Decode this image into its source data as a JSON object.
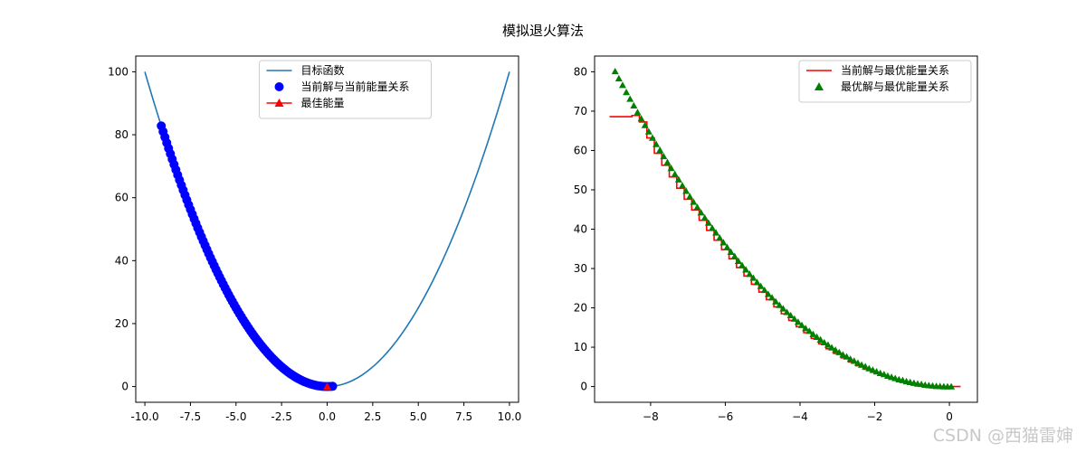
{
  "suptitle": "模拟退火算法",
  "watermark": "CSDN @西猫雷婶",
  "colors": {
    "objective": "#1f77b4",
    "current_scatter": "#0000ff",
    "best_marker": "#ff0000",
    "current_best_line": "#ff0000",
    "best_scatter_right": "#008000"
  },
  "chart_data": [
    {
      "type": "line",
      "title": "",
      "xlabel": "",
      "ylabel": "",
      "xlim": [
        -10.5,
        10.5
      ],
      "ylim": [
        -5,
        105
      ],
      "x_ticks": [
        -10.0,
        -7.5,
        -5.0,
        -2.5,
        0.0,
        2.5,
        5.0,
        7.5,
        10.0
      ],
      "x_tick_labels": [
        "-10.0",
        "-7.5",
        "-5.0",
        "-2.5",
        "0.0",
        "2.5",
        "5.0",
        "7.5",
        "10.0"
      ],
      "y_ticks": [
        0,
        20,
        40,
        60,
        80,
        100
      ],
      "y_tick_labels": [
        "0",
        "20",
        "40",
        "60",
        "80",
        "100"
      ],
      "grid": false,
      "legend_position": "upper center",
      "series": [
        {
          "name": "目标函数",
          "kind": "line",
          "color": "#1f77b4",
          "function": "x^2",
          "x": [
            -10,
            -9,
            -8,
            -7,
            -6,
            -5,
            -4,
            -3,
            -2,
            -1,
            0,
            1,
            2,
            3,
            4,
            5,
            6,
            7,
            8,
            9,
            10
          ],
          "y": [
            100,
            81,
            64,
            49,
            36,
            25,
            16,
            9,
            4,
            1,
            0,
            1,
            4,
            9,
            16,
            25,
            36,
            49,
            64,
            81,
            100
          ]
        },
        {
          "name": "当前解与当前能量关系",
          "kind": "scatter",
          "marker": "circle",
          "color": "#0000ff",
          "x": [
            -9.1,
            -9.0,
            -8.9,
            -8.8,
            -8.7,
            -8.6,
            -8.5,
            -8.4,
            -8.3,
            -8.2,
            -8.1,
            -8.0,
            -7.9,
            -7.8,
            -7.7,
            -7.6,
            -7.5,
            -7.4,
            -7.3,
            -7.2,
            -7.1,
            -7.0,
            -6.9,
            -6.8,
            -6.7,
            -6.6,
            -6.5,
            -6.4,
            -6.3,
            -6.2,
            -6.1,
            -6.0,
            -5.9,
            -5.8,
            -5.7,
            -5.6,
            -5.5,
            -5.4,
            -5.3,
            -5.2,
            -5.1,
            -5.0,
            -4.9,
            -4.8,
            -4.7,
            -4.6,
            -4.5,
            -4.4,
            -4.3,
            -4.2,
            -4.1,
            -4.0,
            -3.9,
            -3.8,
            -3.7,
            -3.6,
            -3.5,
            -3.4,
            -3.3,
            -3.2,
            -3.1,
            -3.0,
            -2.9,
            -2.8,
            -2.7,
            -2.6,
            -2.5,
            -2.4,
            -2.3,
            -2.2,
            -2.1,
            -2.0,
            -1.9,
            -1.8,
            -1.7,
            -1.6,
            -1.5,
            -1.4,
            -1.3,
            -1.2,
            -1.1,
            -1.0,
            -0.9,
            -0.8,
            -0.7,
            -0.6,
            -0.5,
            -0.4,
            -0.3,
            -0.2,
            -0.1,
            0.0,
            0.1,
            0.2,
            0.3
          ],
          "y": [
            82.81,
            81.0,
            79.21,
            77.44,
            75.69,
            73.96,
            72.25,
            70.56,
            68.89,
            67.24,
            65.61,
            64.0,
            62.41,
            60.84,
            59.29,
            57.76,
            56.25,
            54.76,
            53.29,
            51.84,
            50.41,
            49.0,
            47.61,
            46.24,
            44.89,
            43.56,
            42.25,
            40.96,
            39.69,
            38.44,
            37.21,
            36.0,
            34.81,
            33.64,
            32.49,
            31.36,
            30.25,
            29.16,
            28.09,
            27.04,
            26.01,
            25.0,
            24.01,
            23.04,
            22.09,
            21.16,
            20.25,
            19.36,
            18.49,
            17.64,
            16.81,
            16.0,
            15.21,
            14.44,
            13.69,
            12.96,
            12.25,
            11.56,
            10.89,
            10.24,
            9.61,
            9.0,
            8.41,
            7.84,
            7.29,
            6.76,
            6.25,
            5.76,
            5.29,
            4.84,
            4.41,
            4.0,
            3.61,
            3.24,
            2.89,
            2.56,
            2.25,
            1.96,
            1.69,
            1.44,
            1.21,
            1.0,
            0.81,
            0.64,
            0.49,
            0.36,
            0.25,
            0.16,
            0.09,
            0.04,
            0.01,
            0.0,
            0.01,
            0.04,
            0.09
          ]
        },
        {
          "name": "最佳能量",
          "kind": "marker",
          "marker": "triangle",
          "color": "#ff0000",
          "x": [
            0.0
          ],
          "y": [
            0.0
          ]
        }
      ]
    },
    {
      "type": "line",
      "title": "",
      "xlabel": "",
      "ylabel": "",
      "xlim": [
        -9.5,
        0.75
      ],
      "ylim": [
        -4,
        84
      ],
      "x_ticks": [
        -8,
        -6,
        -4,
        -2,
        0
      ],
      "x_tick_labels": [
        "−8",
        "−6",
        "−4",
        "−2",
        "0"
      ],
      "y_ticks": [
        0,
        10,
        20,
        30,
        40,
        50,
        60,
        70,
        80
      ],
      "y_tick_labels": [
        "0",
        "10",
        "20",
        "30",
        "40",
        "50",
        "60",
        "70",
        "80"
      ],
      "grid": false,
      "legend_position": "upper right",
      "series": [
        {
          "name": "当前解与最优能量关系",
          "kind": "step",
          "color": "#ff0000",
          "x": [
            -9.1,
            -8.5,
            -8.5,
            -8.3,
            -8.3,
            -8.1,
            -8.1,
            -7.9,
            -7.9,
            -7.7,
            -7.7,
            -7.5,
            -7.5,
            -7.3,
            -7.3,
            -7.1,
            -7.1,
            -6.9,
            -6.9,
            -6.7,
            -6.7,
            -6.5,
            -6.5,
            -6.3,
            -6.3,
            -6.1,
            -6.1,
            -5.9,
            -5.9,
            -5.7,
            -5.7,
            -5.5,
            -5.5,
            -5.3,
            -5.3,
            -5.1,
            -5.1,
            -4.9,
            -4.9,
            -4.7,
            -4.7,
            -4.5,
            -4.5,
            -4.3,
            -4.3,
            -4.1,
            -4.1,
            -3.9,
            -3.9,
            -3.7,
            -3.7,
            -3.5,
            -3.5,
            -3.3,
            -3.3,
            -3.1,
            -3.1,
            -2.9,
            -2.9,
            -2.7,
            -2.7,
            -2.5,
            -2.5,
            -2.3,
            -2.3,
            -2.1,
            -2.1,
            -1.9,
            -1.9,
            -1.7,
            -1.7,
            -1.5,
            -1.5,
            -1.3,
            -1.3,
            -1.1,
            -1.1,
            -0.9,
            -0.9,
            -0.7,
            -0.7,
            -0.5,
            -0.5,
            -0.3,
            -0.3,
            -0.1,
            0.3
          ],
          "y": [
            68.6,
            68.6,
            68.89,
            68.89,
            67.24,
            67.24,
            63.2,
            63.2,
            59.29,
            59.29,
            56.25,
            56.25,
            53.29,
            53.29,
            50.41,
            50.41,
            47.61,
            47.61,
            44.89,
            44.89,
            42.25,
            42.25,
            39.69,
            39.69,
            37.21,
            37.21,
            34.81,
            34.81,
            32.49,
            32.49,
            30.25,
            30.25,
            28.09,
            28.09,
            26.01,
            26.01,
            24.01,
            24.01,
            22.09,
            22.09,
            20.25,
            20.25,
            18.49,
            18.49,
            16.81,
            16.81,
            15.21,
            15.21,
            13.69,
            13.69,
            12.25,
            12.25,
            10.89,
            10.89,
            9.61,
            9.61,
            8.41,
            8.41,
            7.29,
            7.29,
            6.25,
            6.25,
            5.29,
            5.29,
            4.41,
            4.41,
            3.61,
            3.61,
            2.89,
            2.89,
            2.25,
            2.25,
            1.69,
            1.69,
            1.21,
            1.21,
            0.81,
            0.81,
            0.49,
            0.49,
            0.25,
            0.25,
            0.09,
            0.09,
            0.01,
            0.0,
            0.0
          ]
        },
        {
          "name": "最优解与最优能量关系",
          "kind": "scatter",
          "marker": "triangle",
          "color": "#008000",
          "x": [
            -8.95,
            -8.85,
            -8.75,
            -8.65,
            -8.55,
            -8.45,
            -8.35,
            -8.25,
            -8.15,
            -8.05,
            -7.95,
            -7.85,
            -7.75,
            -7.65,
            -7.55,
            -7.45,
            -7.35,
            -7.25,
            -7.15,
            -7.05,
            -6.95,
            -6.85,
            -6.75,
            -6.65,
            -6.55,
            -6.45,
            -6.35,
            -6.25,
            -6.15,
            -6.05,
            -5.95,
            -5.85,
            -5.75,
            -5.65,
            -5.55,
            -5.45,
            -5.35,
            -5.25,
            -5.15,
            -5.05,
            -4.95,
            -4.85,
            -4.75,
            -4.65,
            -4.55,
            -4.45,
            -4.35,
            -4.25,
            -4.15,
            -4.05,
            -3.95,
            -3.85,
            -3.75,
            -3.65,
            -3.55,
            -3.45,
            -3.35,
            -3.25,
            -3.15,
            -3.05,
            -2.95,
            -2.85,
            -2.75,
            -2.65,
            -2.55,
            -2.45,
            -2.35,
            -2.25,
            -2.15,
            -2.05,
            -1.95,
            -1.85,
            -1.75,
            -1.65,
            -1.55,
            -1.45,
            -1.35,
            -1.25,
            -1.15,
            -1.05,
            -0.95,
            -0.85,
            -0.75,
            -0.65,
            -0.55,
            -0.45,
            -0.35,
            -0.25,
            -0.15,
            -0.05,
            0.05
          ],
          "y": [
            80.1,
            78.3,
            76.6,
            74.8,
            73.1,
            71.4,
            69.7,
            68.1,
            66.4,
            64.8,
            63.2,
            61.6,
            60.1,
            58.5,
            57.0,
            55.5,
            54.0,
            52.6,
            51.1,
            49.7,
            48.3,
            46.9,
            45.6,
            44.2,
            42.9,
            41.6,
            40.3,
            39.1,
            37.8,
            36.6,
            35.4,
            34.2,
            33.1,
            31.9,
            30.8,
            29.7,
            28.6,
            27.6,
            26.5,
            25.5,
            24.5,
            23.5,
            22.6,
            21.6,
            20.7,
            19.8,
            18.9,
            18.1,
            17.2,
            16.4,
            15.6,
            14.8,
            14.1,
            13.3,
            12.6,
            11.9,
            11.2,
            10.6,
            9.9,
            9.3,
            8.7,
            8.1,
            7.6,
            7.0,
            6.5,
            6.0,
            5.5,
            5.1,
            4.6,
            4.2,
            3.8,
            3.4,
            3.1,
            2.7,
            2.4,
            2.1,
            1.8,
            1.6,
            1.3,
            1.1,
            0.9,
            0.7,
            0.6,
            0.4,
            0.3,
            0.2,
            0.1,
            0.06,
            0.02,
            0.0,
            0.0
          ]
        }
      ]
    }
  ]
}
